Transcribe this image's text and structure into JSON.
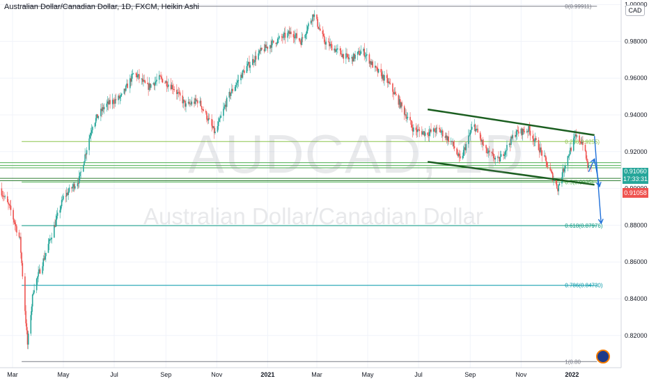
{
  "header": {
    "title": "Australian Dollar/Canadian Dollar, 1D, FXCM, Heikin Ashi",
    "currency": "CAD"
  },
  "watermark": {
    "symbol": "AUDCAD, 1D",
    "name": "Australian Dollar/Canadian Dollar"
  },
  "price_badges": {
    "current_price": "0.91060",
    "countdown": "17:33:31",
    "previous_close": "0.91058"
  },
  "chart_data": {
    "type": "candlestick",
    "style": "Heikin Ashi",
    "ylim": [
      0.8025,
      1.0025
    ],
    "xlim": [
      "2020-02-15",
      "2022-03-01"
    ],
    "y_ticks": [
      "0.82000",
      "0.84000",
      "0.86000",
      "0.88000",
      "0.90000",
      "0.92000",
      "0.94000",
      "0.96000",
      "0.98000",
      "1.00000"
    ],
    "x_ticks": [
      {
        "label": "Mar",
        "date": "2020-03-01"
      },
      {
        "label": "May",
        "date": "2020-05-01"
      },
      {
        "label": "Jul",
        "date": "2020-07-01"
      },
      {
        "label": "Sep",
        "date": "2020-09-01"
      },
      {
        "label": "Nov",
        "date": "2020-11-01"
      },
      {
        "label": "2021",
        "date": "2021-01-01"
      },
      {
        "label": "Mar",
        "date": "2021-03-01"
      },
      {
        "label": "May",
        "date": "2021-05-01"
      },
      {
        "label": "Jul",
        "date": "2021-07-01"
      },
      {
        "label": "Sep",
        "date": "2021-09-01"
      },
      {
        "label": "Nov",
        "date": "2021-11-01"
      },
      {
        "label": "2022",
        "date": "2022-01-01"
      }
    ],
    "price_path": [
      [
        "2020-02-15",
        0.9
      ],
      [
        "2020-02-28",
        0.888
      ],
      [
        "2020-03-10",
        0.872
      ],
      [
        "2020-03-19",
        0.815
      ],
      [
        "2020-03-26",
        0.845
      ],
      [
        "2020-04-10",
        0.865
      ],
      [
        "2020-05-01",
        0.895
      ],
      [
        "2020-05-20",
        0.905
      ],
      [
        "2020-06-05",
        0.935
      ],
      [
        "2020-06-20",
        0.945
      ],
      [
        "2020-07-10",
        0.95
      ],
      [
        "2020-07-25",
        0.963
      ],
      [
        "2020-08-10",
        0.955
      ],
      [
        "2020-08-25",
        0.96
      ],
      [
        "2020-09-10",
        0.955
      ],
      [
        "2020-09-25",
        0.945
      ],
      [
        "2020-10-10",
        0.948
      ],
      [
        "2020-10-30",
        0.93
      ],
      [
        "2020-11-15",
        0.95
      ],
      [
        "2020-12-05",
        0.965
      ],
      [
        "2020-12-25",
        0.975
      ],
      [
        "2021-01-10",
        0.98
      ],
      [
        "2021-01-30",
        0.985
      ],
      [
        "2021-02-10",
        0.98
      ],
      [
        "2021-02-25",
        0.995
      ],
      [
        "2021-03-10",
        0.98
      ],
      [
        "2021-03-25",
        0.975
      ],
      [
        "2021-04-10",
        0.97
      ],
      [
        "2021-04-25",
        0.975
      ],
      [
        "2021-05-10",
        0.965
      ],
      [
        "2021-05-25",
        0.958
      ],
      [
        "2021-06-10",
        0.945
      ],
      [
        "2021-06-25",
        0.932
      ],
      [
        "2021-07-10",
        0.93
      ],
      [
        "2021-07-25",
        0.932
      ],
      [
        "2021-08-10",
        0.925
      ],
      [
        "2021-08-20",
        0.915
      ],
      [
        "2021-09-05",
        0.935
      ],
      [
        "2021-09-20",
        0.92
      ],
      [
        "2021-10-05",
        0.915
      ],
      [
        "2021-10-25",
        0.93
      ],
      [
        "2021-11-10",
        0.932
      ],
      [
        "2021-11-25",
        0.92
      ],
      [
        "2021-12-05",
        0.91
      ],
      [
        "2021-12-15",
        0.9
      ],
      [
        "2021-12-25",
        0.915
      ],
      [
        "2022-01-05",
        0.928
      ],
      [
        "2022-01-14",
        0.925
      ],
      [
        "2022-01-20",
        0.912
      ],
      [
        "2022-01-24",
        0.91
      ]
    ],
    "fib_levels": [
      {
        "label": "0(0.99911)",
        "value": 0.99911,
        "color": "#787b86"
      },
      {
        "label": "0.236(0.9255)",
        "value": 0.9255,
        "color": "#8bc34a"
      },
      {
        "label": "0.5(0.9035)",
        "value": 0.9035,
        "color": "#4caf50"
      },
      {
        "label": "0.618(0.87976)",
        "value": 0.87976,
        "color": "#089981"
      },
      {
        "label": "0.786(0.84730)",
        "value": 0.8473,
        "color": "#0097a7"
      },
      {
        "label": "1(0.80",
        "value": 0.8058,
        "color": "#787b86"
      }
    ],
    "horizontal_lines": [
      {
        "value": 0.914,
        "color": "#4caf50"
      },
      {
        "value": 0.9125,
        "color": "#4caf50"
      },
      {
        "value": 0.9112,
        "color": "#4caf50"
      },
      {
        "value": 0.9055,
        "color": "#2e7d32"
      },
      {
        "value": 0.9042,
        "color": "#2e7d32"
      }
    ],
    "channel_lines": [
      {
        "from": [
          "2021-07-12",
          0.943
        ],
        "to": [
          "2022-01-28",
          0.929
        ]
      },
      {
        "from": [
          "2021-07-12",
          0.9145
        ],
        "to": [
          "2022-01-28",
          0.902
        ]
      }
    ],
    "projection_arrows": [
      {
        "from": [
          "2022-01-28",
          0.9285
        ],
        "to": [
          "2022-02-05",
          0.881
        ]
      },
      {
        "from": [
          "2022-01-21",
          0.909
        ],
        "to": [
          "2022-01-28",
          0.916
        ]
      },
      {
        "from": [
          "2022-01-28",
          0.916
        ],
        "to": [
          "2022-02-03",
          0.901
        ]
      }
    ],
    "colors": {
      "up": "#26a69a",
      "down": "#ef5350",
      "grid": "#f0f3fa",
      "channel": "#1b5e20",
      "arrow": "#1e6fd9"
    },
    "grid": true
  }
}
